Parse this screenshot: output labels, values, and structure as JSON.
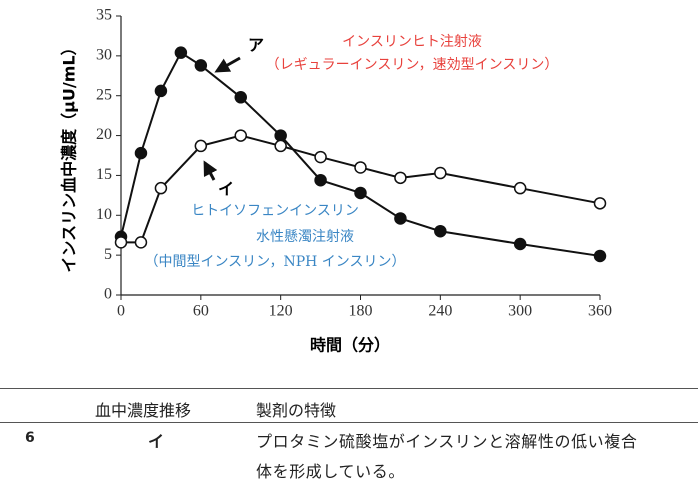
{
  "chart_data": {
    "type": "line",
    "x_label": "時間（分）",
    "y_label": "インスリン血中濃度（μU/mL）",
    "xlim": [
      0,
      360
    ],
    "xticks": [
      0,
      60,
      120,
      180,
      240,
      300,
      360
    ],
    "ylim": [
      0,
      35
    ],
    "yticks": [
      0,
      5,
      10,
      15,
      20,
      25,
      30,
      35
    ],
    "series": [
      {
        "name": "ア",
        "color": "#111111",
        "marker": "filled",
        "x": [
          0,
          15,
          30,
          45,
          60,
          90,
          120,
          150,
          180,
          210,
          240,
          300,
          360
        ],
        "values": [
          7.3,
          17.8,
          25.6,
          30.4,
          28.8,
          24.8,
          20,
          14.4,
          12.8,
          9.6,
          8,
          6.4,
          4.9
        ]
      },
      {
        "name": "イ",
        "color": "#111111",
        "marker": "open",
        "x": [
          0,
          15,
          30,
          60,
          90,
          120,
          150,
          180,
          210,
          240,
          300,
          360
        ],
        "values": [
          6.6,
          6.6,
          13.4,
          18.7,
          20,
          18.7,
          17.3,
          16,
          14.7,
          15.3,
          13.4,
          11.5
        ]
      }
    ],
    "annotations": [
      "インスリンヒト注射液",
      "（レギュラーインスリン，速効型インスリン）",
      "ヒトイソフェンインスリン",
      "水性懸濁注射液",
      "（中間型インスリン，NPH インスリン）"
    ]
  },
  "table": {
    "headers": [
      "血中濃度推移",
      "製剤の特徴"
    ],
    "rows": [
      {
        "number": "6",
        "curve": "イ",
        "feature": [
          "プロタミン硫酸塩がインスリンと溶解性の低い複合",
          "体を形成している。"
        ]
      }
    ]
  }
}
